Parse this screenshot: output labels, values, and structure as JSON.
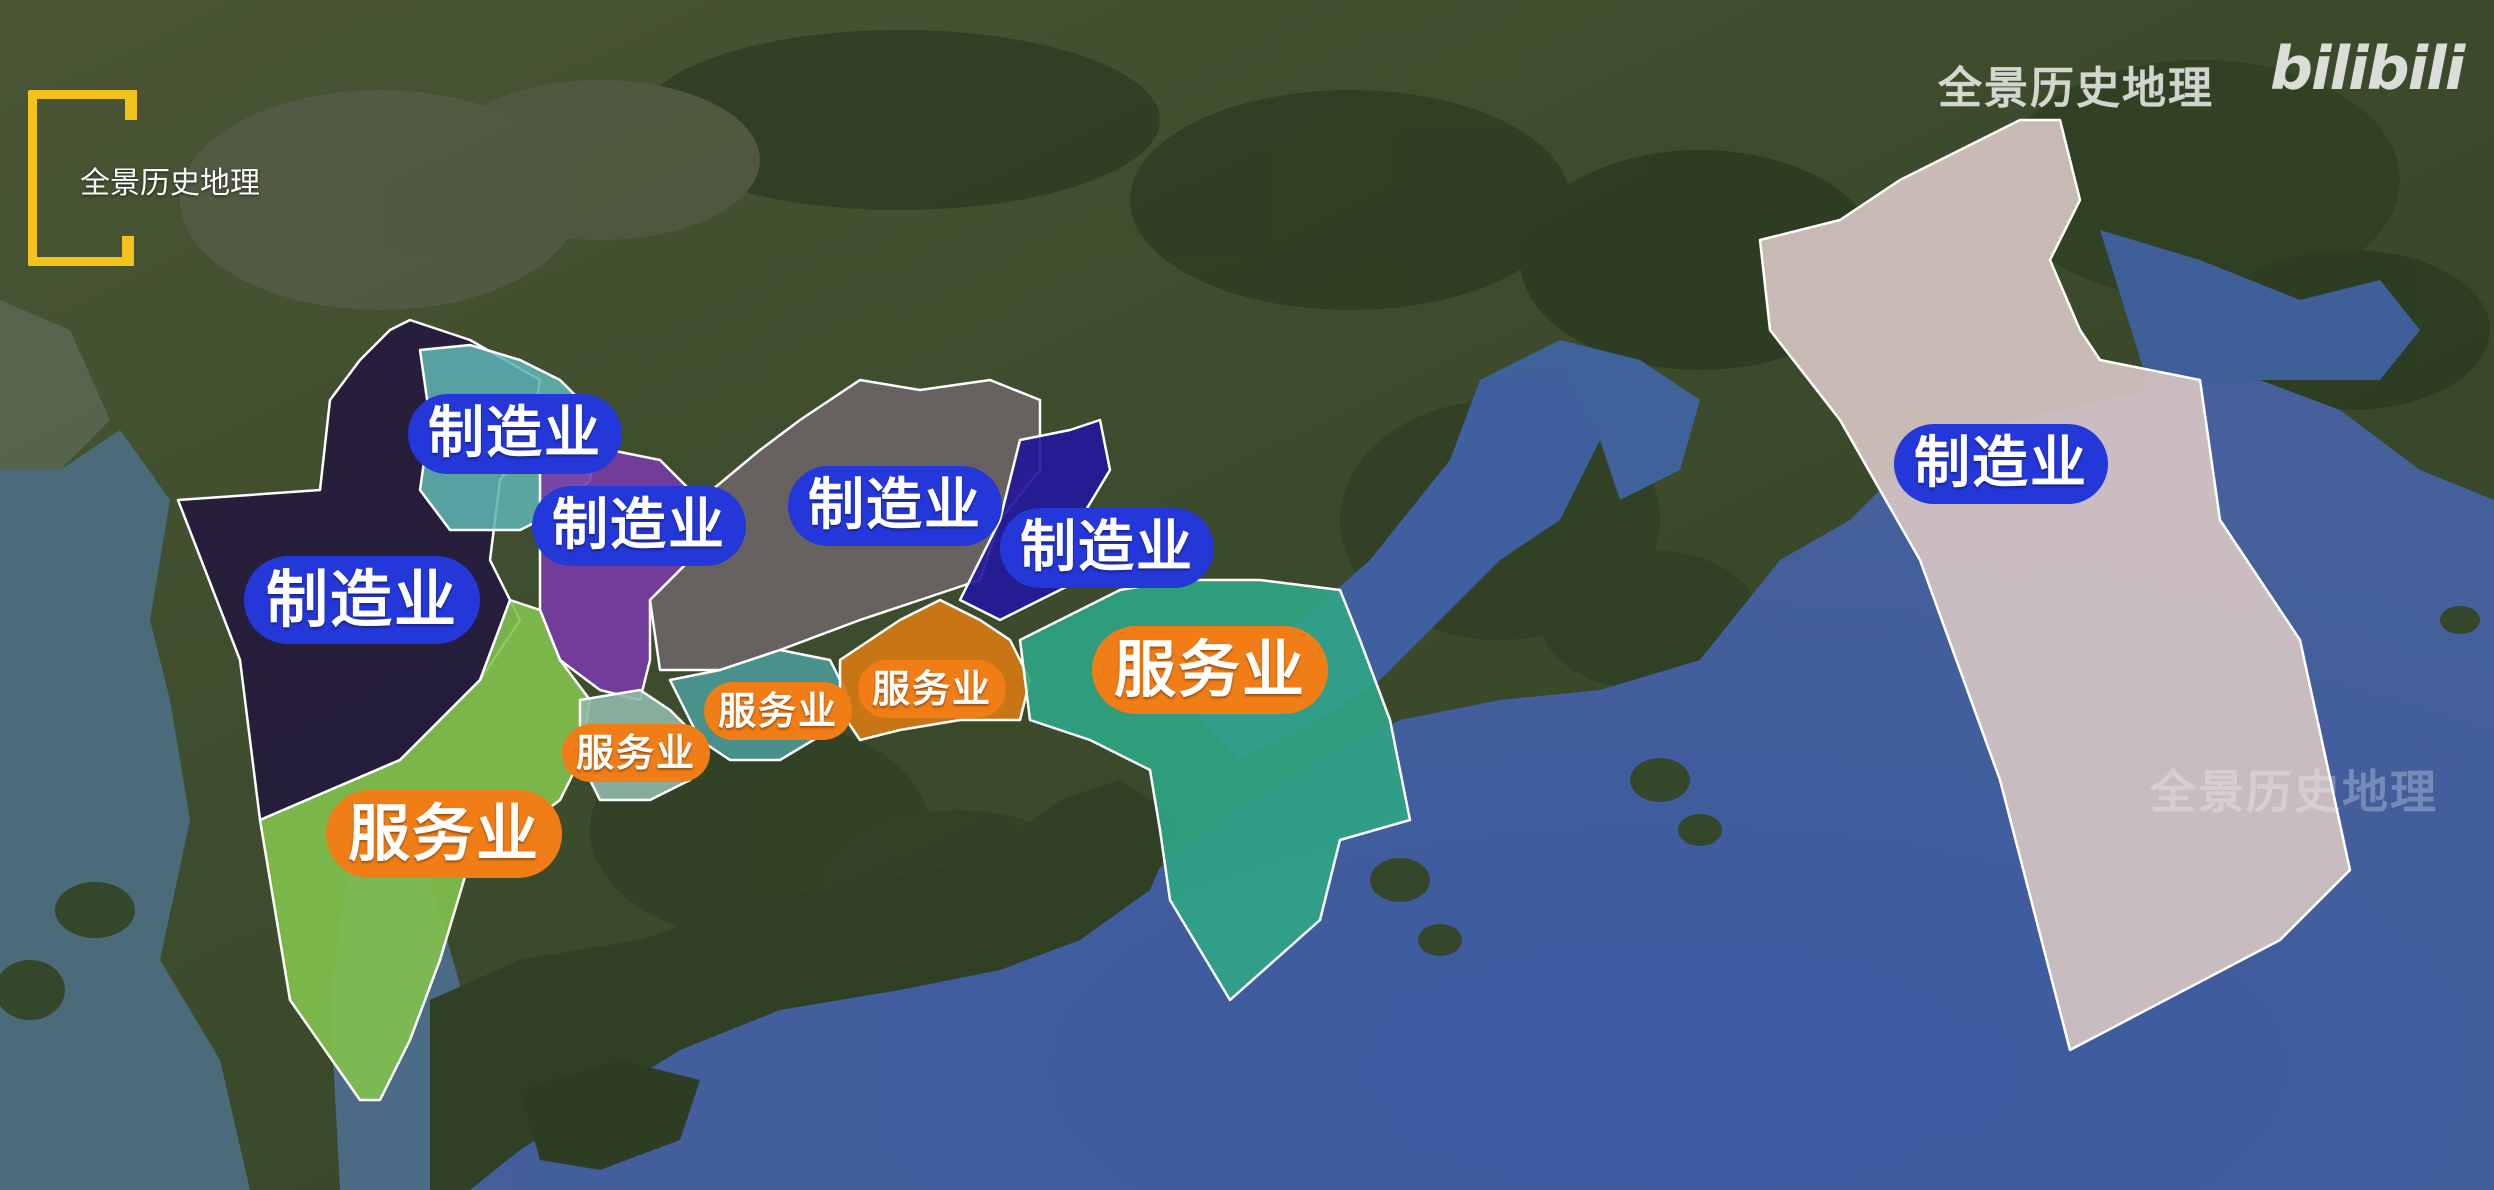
{
  "map": {
    "colors": {
      "land": "#3d4a2c",
      "water": "#3e5da0",
      "shallow_water": "#3f6b6a",
      "pill_manufacturing": "#2437d8",
      "pill_service": "#f07d16",
      "logo": "#f2c31b"
    },
    "regions": [
      {
        "name": "bao-an",
        "color": "#22163e"
      },
      {
        "name": "guangming",
        "color": "#5fb4b0"
      },
      {
        "name": "longhua",
        "color": "#7a3aa8"
      },
      {
        "name": "longgang",
        "color": "#6b6465"
      },
      {
        "name": "pingshan",
        "color": "#23189a"
      },
      {
        "name": "nanshan",
        "color": "#82c24e"
      },
      {
        "name": "futian",
        "color": "#8fb8a9"
      },
      {
        "name": "luohu",
        "color": "#4a9a96"
      },
      {
        "name": "yantian",
        "color": "#d47813"
      },
      {
        "name": "dapeng",
        "color": "#2fa585"
      },
      {
        "name": "shenshan",
        "color": "#d8c6c4"
      }
    ],
    "labels": [
      {
        "text": "制造业",
        "type": "manufacturing"
      },
      {
        "text": "制造业",
        "type": "manufacturing"
      },
      {
        "text": "制造业",
        "type": "manufacturing"
      },
      {
        "text": "制造业",
        "type": "manufacturing"
      },
      {
        "text": "制造业",
        "type": "manufacturing"
      },
      {
        "text": "制造业",
        "type": "manufacturing"
      },
      {
        "text": "服务业",
        "type": "service"
      },
      {
        "text": "服务业",
        "type": "service"
      },
      {
        "text": "服务业",
        "type": "service"
      },
      {
        "text": "服务业",
        "type": "service"
      },
      {
        "text": "服务业",
        "type": "service"
      }
    ]
  },
  "branding": {
    "logo_text": "全景历史地理",
    "watermark_top": "全景历史地理",
    "watermark_site": "bilibili",
    "watermark_mid": "全景历史地理"
  }
}
